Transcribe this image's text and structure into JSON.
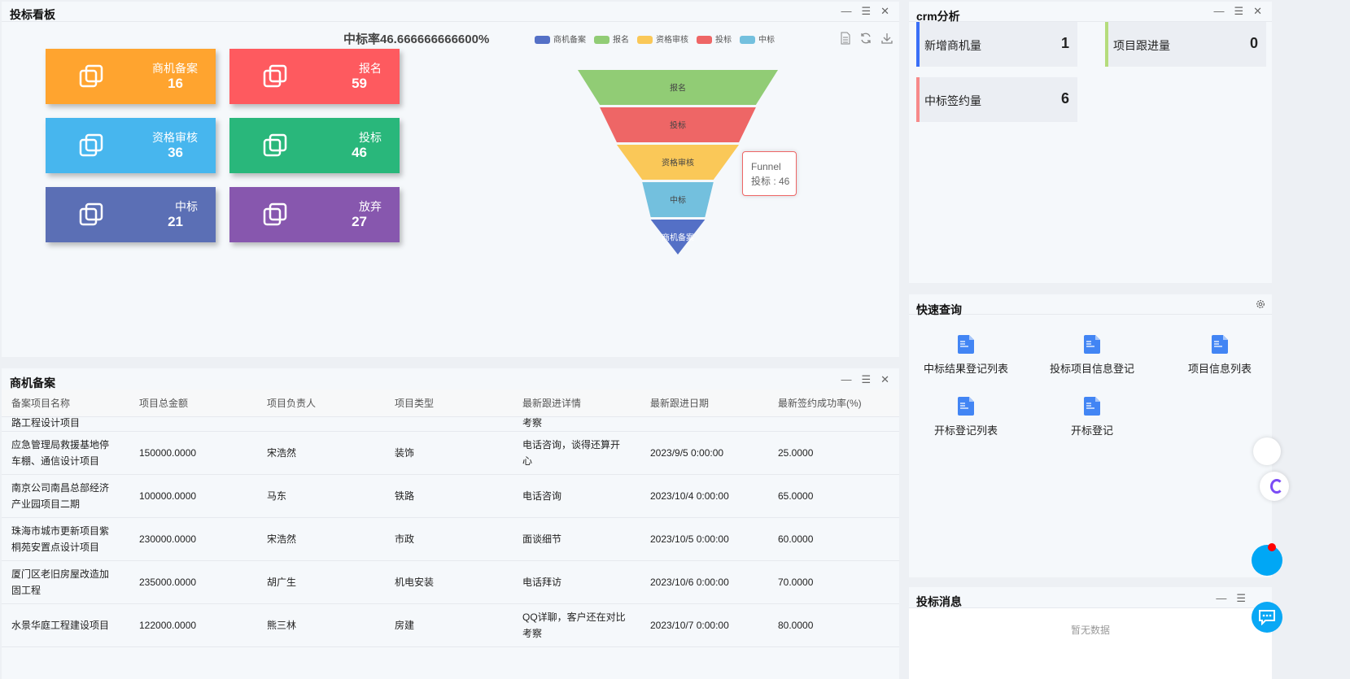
{
  "bidding_board": {
    "title": "投标看板",
    "controls": [
      "—",
      "☰",
      "✕"
    ],
    "cards": [
      {
        "label": "商机备案",
        "value": "16",
        "color": "#ffa42f"
      },
      {
        "label": "报名",
        "value": "59",
        "color": "#fe5a5f"
      },
      {
        "label": "资格审核",
        "value": "36",
        "color": "#47b6ee"
      },
      {
        "label": "投标",
        "value": "46",
        "color": "#29b77b"
      },
      {
        "label": "中标",
        "value": "21",
        "color": "#5b6fb5"
      },
      {
        "label": "放弃",
        "value": "27",
        "color": "#8757ae"
      }
    ],
    "toolbox": [
      "doc-icon",
      "refresh-icon",
      "download-icon"
    ]
  },
  "chart_data": {
    "type": "funnel",
    "title": "中标率46.666666666600%",
    "legend": [
      "商机备案",
      "报名",
      "资格审核",
      "投标",
      "中标"
    ],
    "series": [
      {
        "name": "Funnel",
        "data": [
          {
            "name": "报名",
            "value": 59,
            "color": "#91cc75"
          },
          {
            "name": "投标",
            "value": 46,
            "color": "#ee6666"
          },
          {
            "name": "资格审核",
            "value": 36,
            "color": "#fac858"
          },
          {
            "name": "中标",
            "value": 21,
            "color": "#73c0de"
          },
          {
            "name": "商机备案",
            "value": 16,
            "color": "#5470c6"
          }
        ]
      }
    ],
    "tooltip": {
      "series": "Funnel",
      "text": "投标 : 46"
    }
  },
  "crm": {
    "title": "crm分析",
    "controls": [
      "—",
      "☰",
      "✕"
    ],
    "kpis": [
      {
        "label": "新增商机量",
        "value": "1",
        "color": "#3a6ff7"
      },
      {
        "label": "项目跟进量",
        "value": "0",
        "color": "#b5dc7c"
      },
      {
        "label": "中标签约量",
        "value": "6",
        "color": "#f78a8a"
      }
    ]
  },
  "quick": {
    "title": "快速查询",
    "items": [
      "中标结果登记列表",
      "投标项目信息登记",
      "项目信息列表",
      "开标登记列表",
      "开标登记"
    ]
  },
  "messages": {
    "title": "投标消息",
    "controls": [
      "—",
      "☰"
    ],
    "empty": "暂无数据"
  },
  "opportunities": {
    "title": "商机备案",
    "controls": [
      "—",
      "☰",
      "✕"
    ],
    "columns": [
      "备案项目名称",
      "项目总金额",
      "项目负责人",
      "项目类型",
      "最新跟进详情",
      "最新跟进日期",
      "最新签约成功率(%)"
    ],
    "rows": [
      [
        "路工程设计项目",
        "",
        "",
        "",
        "考察",
        "",
        ""
      ],
      [
        "应急管理局救援基地停车棚、通信设计项目",
        "150000.0000",
        "宋浩然",
        "装饰",
        "电话咨询，谈得还算开心",
        "2023/9/5 0:00:00",
        "25.0000"
      ],
      [
        "南京公司南昌总部经济产业园项目二期",
        "100000.0000",
        "马东",
        "铁路",
        "电话咨询",
        "2023/10/4 0:00:00",
        "65.0000"
      ],
      [
        "珠海市城市更新项目紫桐苑安置点设计项目",
        "230000.0000",
        "宋浩然",
        "市政",
        "面谈细节",
        "2023/10/5 0:00:00",
        "60.0000"
      ],
      [
        "厦门区老旧房屋改造加固工程",
        "235000.0000",
        "胡广生",
        "机电安装",
        "电话拜访",
        "2023/10/6 0:00:00",
        "70.0000"
      ],
      [
        "水景华庭工程建设项目",
        "122000.0000",
        "熊三林",
        "房建",
        "QQ详聊，客户还在对比考察",
        "2023/10/7 0:00:00",
        "80.0000"
      ]
    ]
  }
}
